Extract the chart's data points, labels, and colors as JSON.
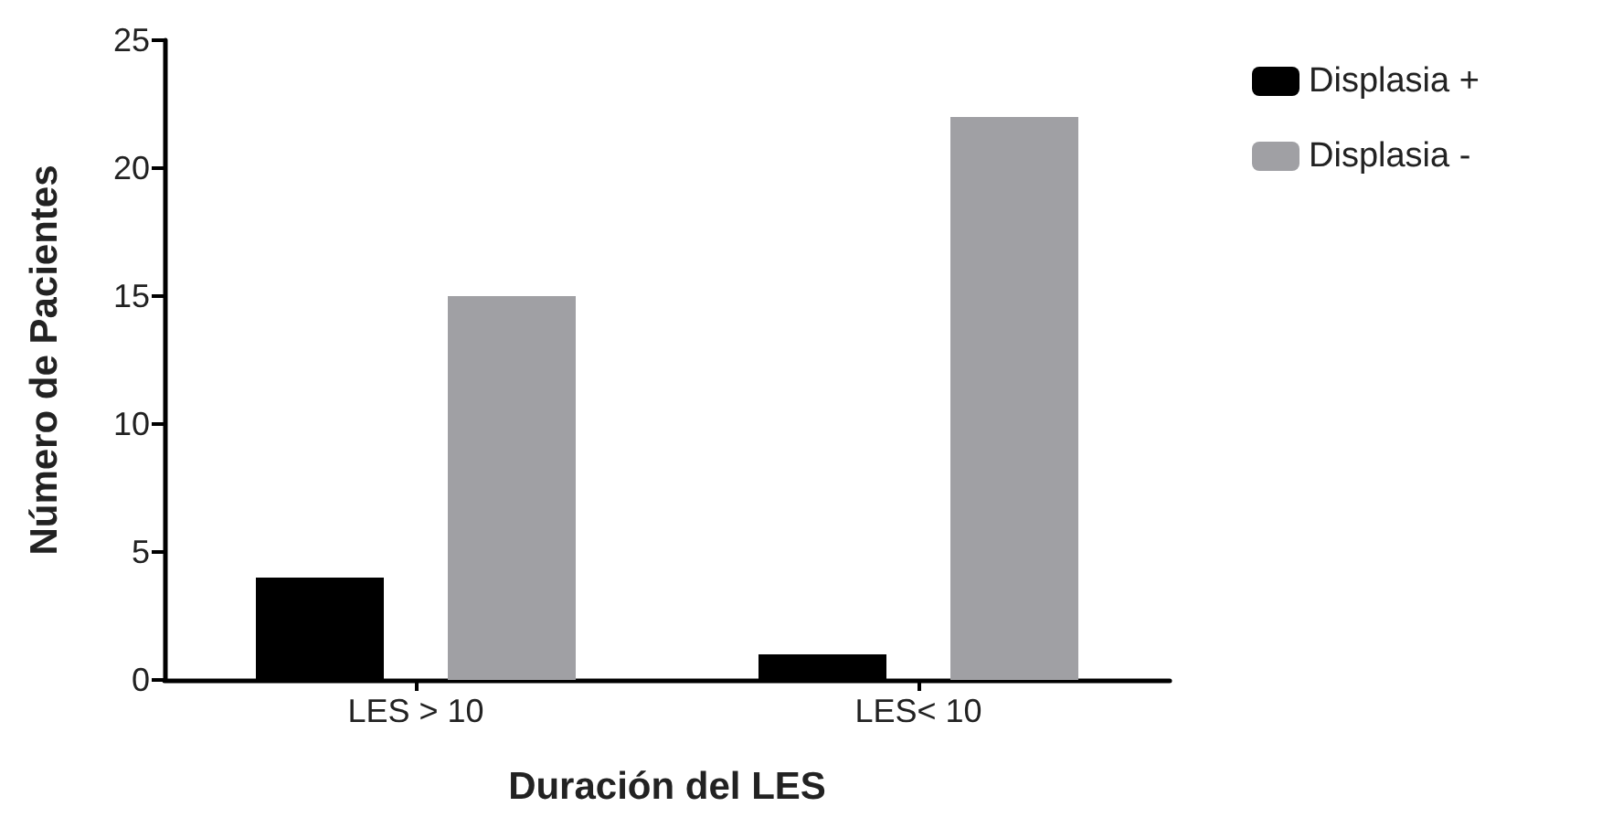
{
  "chart_data": {
    "type": "bar",
    "xlabel": "Duración del LES",
    "ylabel": "Número de Pacientes",
    "categories": [
      "LES > 10",
      "LES< 10"
    ],
    "series": [
      {
        "name": "Displasia +",
        "color": "#000000",
        "values": [
          4,
          1
        ]
      },
      {
        "name": "Displasia -",
        "color": "#a0a0a4",
        "values": [
          15,
          22
        ]
      }
    ],
    "ylim": [
      0,
      25
    ],
    "yticks": [
      0,
      5,
      10,
      15,
      20,
      25
    ],
    "grid": false,
    "legend": "top right"
  }
}
